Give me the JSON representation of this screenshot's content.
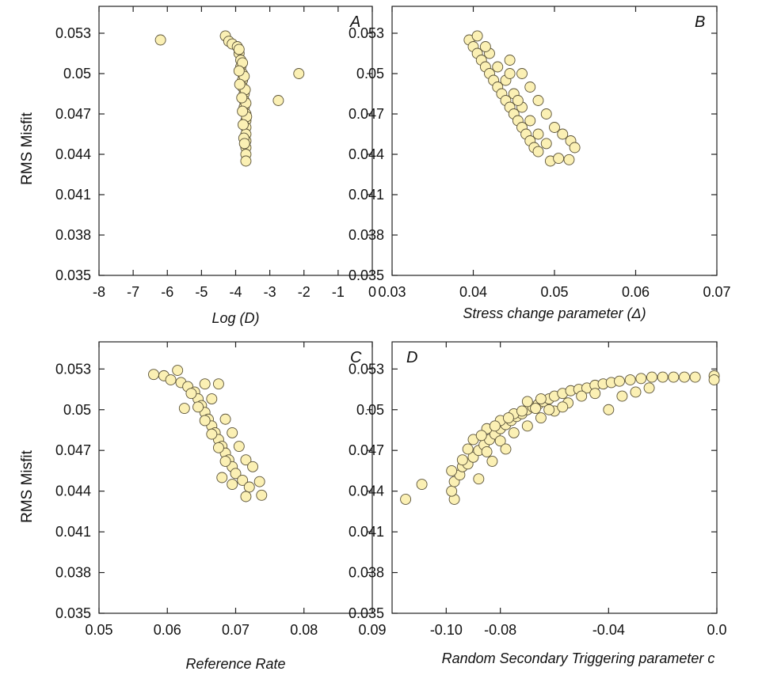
{
  "ylabel": "RMS Misfit",
  "chart_data": [
    {
      "id": "A",
      "type": "scatter",
      "panel_label": "A",
      "xlabel": "Log (D)",
      "ylabel": "RMS Misfit",
      "xlim": [
        -8,
        0
      ],
      "ylim": [
        0.035,
        0.055
      ],
      "xticks": [
        -8,
        -7,
        -6,
        -5,
        -4,
        -3,
        -2,
        -1,
        0
      ],
      "xtick_labels": [
        "-8",
        "-7",
        "-6",
        "-5",
        "-4",
        "-3",
        "-2",
        "-1",
        "0"
      ],
      "yticks": [
        0.035,
        0.038,
        0.041,
        0.044,
        0.047,
        0.05,
        0.053
      ],
      "ytick_labels": [
        "0.035",
        "0.038",
        "0.041",
        "0.044",
        "0.047",
        "0.05",
        "0.053"
      ],
      "points": [
        [
          -6.2,
          0.0525
        ],
        [
          -4.3,
          0.0528
        ],
        [
          -4.2,
          0.0524
        ],
        [
          -4.1,
          0.0522
        ],
        [
          -3.95,
          0.052
        ],
        [
          -3.9,
          0.0515
        ],
        [
          -3.85,
          0.051
        ],
        [
          -3.85,
          0.0505
        ],
        [
          -3.8,
          0.05
        ],
        [
          -3.8,
          0.0495
        ],
        [
          -3.8,
          0.049
        ],
        [
          -3.75,
          0.0485
        ],
        [
          -3.75,
          0.048
        ],
        [
          -3.75,
          0.0475
        ],
        [
          -3.7,
          0.047
        ],
        [
          -3.7,
          0.0465
        ],
        [
          -3.7,
          0.046
        ],
        [
          -3.7,
          0.0455
        ],
        [
          -3.7,
          0.045
        ],
        [
          -3.7,
          0.0445
        ],
        [
          -3.7,
          0.044
        ],
        [
          -3.7,
          0.0435
        ],
        [
          -3.9,
          0.0518
        ],
        [
          -3.8,
          0.0508
        ],
        [
          -3.75,
          0.0498
        ],
        [
          -3.72,
          0.0488
        ],
        [
          -3.7,
          0.0478
        ],
        [
          -3.68,
          0.0468
        ],
        [
          -3.9,
          0.0502
        ],
        [
          -3.88,
          0.0492
        ],
        [
          -3.82,
          0.0482
        ],
        [
          -3.8,
          0.0472
        ],
        [
          -3.78,
          0.0462
        ],
        [
          -3.76,
          0.0452
        ],
        [
          -3.74,
          0.0448
        ],
        [
          -2.75,
          0.048
        ],
        [
          -2.15,
          0.05
        ]
      ]
    },
    {
      "id": "B",
      "type": "scatter",
      "panel_label": "B",
      "xlabel": "Stress change parameter (Δ)",
      "ylabel": "",
      "xlim": [
        0.03,
        0.07
      ],
      "ylim": [
        0.035,
        0.055
      ],
      "xticks": [
        0.03,
        0.04,
        0.05,
        0.06,
        0.07
      ],
      "xtick_labels": [
        "0.03",
        "0.04",
        "0.05",
        "0.06",
        "0.07"
      ],
      "yticks": [
        0.035,
        0.038,
        0.041,
        0.044,
        0.047,
        0.05,
        0.053
      ],
      "ytick_labels": [
        "0.035",
        "0.038",
        "0.041",
        "0.044",
        "0.047",
        "0.05",
        "0.053"
      ],
      "points": [
        [
          0.0395,
          0.0525
        ],
        [
          0.0405,
          0.0528
        ],
        [
          0.04,
          0.052
        ],
        [
          0.0405,
          0.0515
        ],
        [
          0.041,
          0.051
        ],
        [
          0.0415,
          0.0505
        ],
        [
          0.042,
          0.05
        ],
        [
          0.0425,
          0.0495
        ],
        [
          0.043,
          0.049
        ],
        [
          0.0435,
          0.0485
        ],
        [
          0.044,
          0.048
        ],
        [
          0.0445,
          0.0475
        ],
        [
          0.045,
          0.047
        ],
        [
          0.0455,
          0.0465
        ],
        [
          0.046,
          0.046
        ],
        [
          0.0465,
          0.0455
        ],
        [
          0.047,
          0.045
        ],
        [
          0.0475,
          0.0445
        ],
        [
          0.048,
          0.0442
        ],
        [
          0.042,
          0.0515
        ],
        [
          0.043,
          0.0505
        ],
        [
          0.044,
          0.0495
        ],
        [
          0.045,
          0.0485
        ],
        [
          0.046,
          0.0475
        ],
        [
          0.047,
          0.0465
        ],
        [
          0.048,
          0.0455
        ],
        [
          0.049,
          0.0448
        ],
        [
          0.0445,
          0.051
        ],
        [
          0.046,
          0.05
        ],
        [
          0.047,
          0.049
        ],
        [
          0.048,
          0.048
        ],
        [
          0.049,
          0.047
        ],
        [
          0.05,
          0.046
        ],
        [
          0.051,
          0.0455
        ],
        [
          0.052,
          0.045
        ],
        [
          0.0525,
          0.0445
        ],
        [
          0.0495,
          0.0435
        ],
        [
          0.0505,
          0.0437
        ],
        [
          0.0518,
          0.0436
        ],
        [
          0.0415,
          0.052
        ],
        [
          0.0445,
          0.05
        ],
        [
          0.0455,
          0.048
        ]
      ]
    },
    {
      "id": "C",
      "type": "scatter",
      "panel_label": "C",
      "xlabel": "Reference Rate",
      "ylabel": "RMS Misfit",
      "xlim": [
        0.05,
        0.09
      ],
      "ylim": [
        0.035,
        0.055
      ],
      "xticks": [
        0.05,
        0.06,
        0.07,
        0.08,
        0.09
      ],
      "xtick_labels": [
        "0.05",
        "0.06",
        "0.07",
        "0.08",
        "0.09"
      ],
      "yticks": [
        0.035,
        0.038,
        0.041,
        0.044,
        0.047,
        0.05,
        0.053
      ],
      "ytick_labels": [
        "0.035",
        "0.038",
        "0.041",
        "0.044",
        "0.047",
        "0.05",
        "0.053"
      ],
      "points": [
        [
          0.058,
          0.0526
        ],
        [
          0.0595,
          0.0525
        ],
        [
          0.0605,
          0.0522
        ],
        [
          0.0615,
          0.0529
        ],
        [
          0.062,
          0.052
        ],
        [
          0.063,
          0.0517
        ],
        [
          0.064,
          0.0513
        ],
        [
          0.0645,
          0.0508
        ],
        [
          0.065,
          0.0503
        ],
        [
          0.0655,
          0.0498
        ],
        [
          0.066,
          0.0493
        ],
        [
          0.0665,
          0.0488
        ],
        [
          0.067,
          0.0483
        ],
        [
          0.0675,
          0.0478
        ],
        [
          0.068,
          0.0473
        ],
        [
          0.0685,
          0.0468
        ],
        [
          0.069,
          0.0463
        ],
        [
          0.0695,
          0.0458
        ],
        [
          0.07,
          0.0453
        ],
        [
          0.071,
          0.0448
        ],
        [
          0.072,
          0.0443
        ],
        [
          0.0735,
          0.0447
        ],
        [
          0.0738,
          0.0437
        ],
        [
          0.0715,
          0.0436
        ],
        [
          0.0625,
          0.0501
        ],
        [
          0.0655,
          0.0519
        ],
        [
          0.0675,
          0.0519
        ],
        [
          0.0665,
          0.0508
        ],
        [
          0.0685,
          0.0493
        ],
        [
          0.0695,
          0.0483
        ],
        [
          0.0705,
          0.0473
        ],
        [
          0.0715,
          0.0463
        ],
        [
          0.0725,
          0.0458
        ],
        [
          0.0635,
          0.0512
        ],
        [
          0.0645,
          0.0502
        ],
        [
          0.0655,
          0.0492
        ],
        [
          0.0665,
          0.0482
        ],
        [
          0.0675,
          0.0472
        ],
        [
          0.0685,
          0.0462
        ],
        [
          0.068,
          0.045
        ],
        [
          0.0695,
          0.0445
        ]
      ]
    },
    {
      "id": "D",
      "type": "scatter",
      "panel_label": "D",
      "xlabel": "Random Secondary Triggering parameter c",
      "ylabel": "",
      "xlim": [
        -0.12,
        0.0
      ],
      "ylim": [
        0.035,
        0.055
      ],
      "xticks": [
        -0.1,
        -0.08,
        -0.04,
        0.0
      ],
      "xtick_labels": [
        "-0.10",
        "-0.08",
        "-0.04",
        "0.0"
      ],
      "yticks": [
        0.035,
        0.038,
        0.041,
        0.044,
        0.047,
        0.05,
        0.053
      ],
      "ytick_labels": [
        "0.035",
        "0.038",
        "0.041",
        "0.044",
        "0.047",
        "0.05",
        "0.053"
      ],
      "points": [
        [
          -0.115,
          0.0434
        ],
        [
          -0.109,
          0.0445
        ],
        [
          -0.097,
          0.0434
        ],
        [
          -0.098,
          0.044
        ],
        [
          -0.097,
          0.0447
        ],
        [
          -0.095,
          0.0452
        ],
        [
          -0.094,
          0.0458
        ],
        [
          -0.092,
          0.046
        ],
        [
          -0.09,
          0.0465
        ],
        [
          -0.088,
          0.047
        ],
        [
          -0.086,
          0.0474
        ],
        [
          -0.084,
          0.0478
        ],
        [
          -0.082,
          0.0482
        ],
        [
          -0.08,
          0.0486
        ],
        [
          -0.078,
          0.0489
        ],
        [
          -0.076,
          0.0492
        ],
        [
          -0.074,
          0.0495
        ],
        [
          -0.072,
          0.0497
        ],
        [
          -0.07,
          0.05
        ],
        [
          -0.068,
          0.0502
        ],
        [
          -0.066,
          0.0504
        ],
        [
          -0.064,
          0.0506
        ],
        [
          -0.062,
          0.0508
        ],
        [
          -0.06,
          0.051
        ],
        [
          -0.057,
          0.0512
        ],
        [
          -0.054,
          0.0514
        ],
        [
          -0.051,
          0.0515
        ],
        [
          -0.048,
          0.0516
        ],
        [
          -0.045,
          0.0518
        ],
        [
          -0.042,
          0.0519
        ],
        [
          -0.039,
          0.052
        ],
        [
          -0.036,
          0.0521
        ],
        [
          -0.032,
          0.0522
        ],
        [
          -0.028,
          0.0523
        ],
        [
          -0.024,
          0.0524
        ],
        [
          -0.02,
          0.0524
        ],
        [
          -0.016,
          0.0524
        ],
        [
          -0.012,
          0.0524
        ],
        [
          -0.008,
          0.0524
        ],
        [
          -0.001,
          0.0525
        ],
        [
          -0.001,
          0.0522
        ],
        [
          -0.09,
          0.0478
        ],
        [
          -0.085,
          0.0486
        ],
        [
          -0.08,
          0.0492
        ],
        [
          -0.075,
          0.0497
        ],
        [
          -0.07,
          0.0506
        ],
        [
          -0.065,
          0.0508
        ],
        [
          -0.085,
          0.0469
        ],
        [
          -0.08,
          0.0477
        ],
        [
          -0.075,
          0.0483
        ],
        [
          -0.07,
          0.0488
        ],
        [
          -0.065,
          0.0494
        ],
        [
          -0.06,
          0.0499
        ],
        [
          -0.055,
          0.0505
        ],
        [
          -0.05,
          0.051
        ],
        [
          -0.045,
          0.0512
        ],
        [
          -0.092,
          0.0471
        ],
        [
          -0.087,
          0.0481
        ],
        [
          -0.082,
          0.0488
        ],
        [
          -0.077,
          0.0494
        ],
        [
          -0.072,
          0.0499
        ],
        [
          -0.067,
          0.0501
        ],
        [
          -0.062,
          0.05
        ],
        [
          -0.057,
          0.0502
        ],
        [
          -0.035,
          0.051
        ],
        [
          -0.03,
          0.0513
        ],
        [
          -0.025,
          0.0516
        ],
        [
          -0.098,
          0.0455
        ],
        [
          -0.094,
          0.0463
        ],
        [
          -0.088,
          0.0449
        ],
        [
          -0.083,
          0.0462
        ],
        [
          -0.078,
          0.0471
        ],
        [
          -0.04,
          0.05
        ]
      ]
    }
  ]
}
